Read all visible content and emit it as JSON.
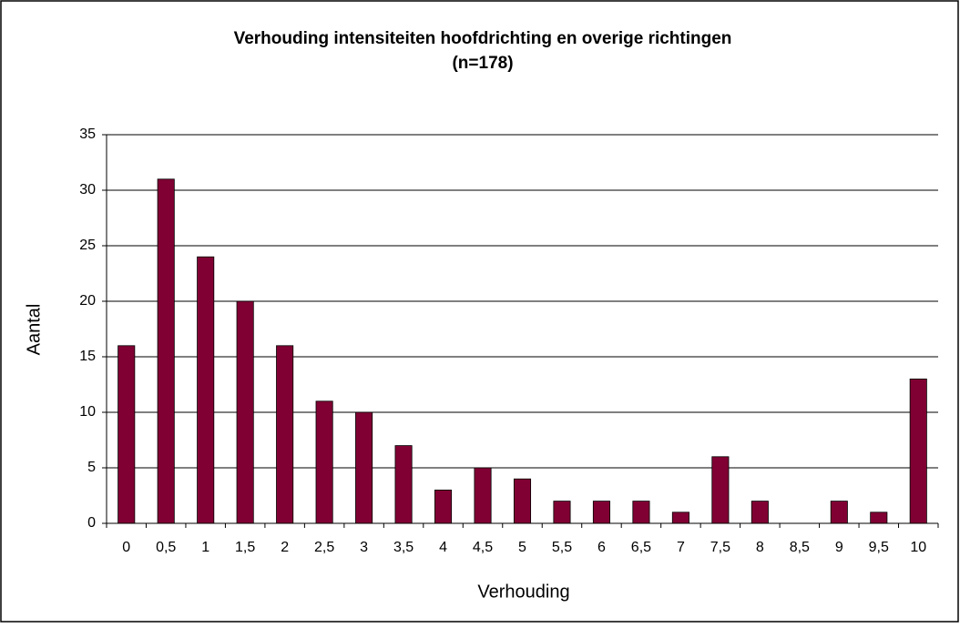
{
  "chart_data": {
    "type": "bar",
    "title": "Verhouding intensiteiten hoofdrichting en overige richtingen",
    "subtitle": "(n=178)",
    "x_label": "Verhouding",
    "y_label": "Aantal",
    "categories": [
      "0",
      "0,5",
      "1",
      "1,5",
      "2",
      "2,5",
      "3",
      "3,5",
      "4",
      "4,5",
      "5",
      "5,5",
      "6",
      "6,5",
      "7",
      "7,5",
      "8",
      "8,5",
      "9",
      "9,5",
      "10"
    ],
    "values": [
      16,
      31,
      24,
      20,
      16,
      11,
      10,
      7,
      3,
      5,
      4,
      2,
      2,
      2,
      1,
      6,
      2,
      0,
      2,
      1,
      13
    ],
    "color": "#800033",
    "ylim": [
      0,
      35
    ],
    "yticks": [
      0,
      5,
      10,
      15,
      20,
      25,
      30,
      35
    ],
    "grid": true
  }
}
